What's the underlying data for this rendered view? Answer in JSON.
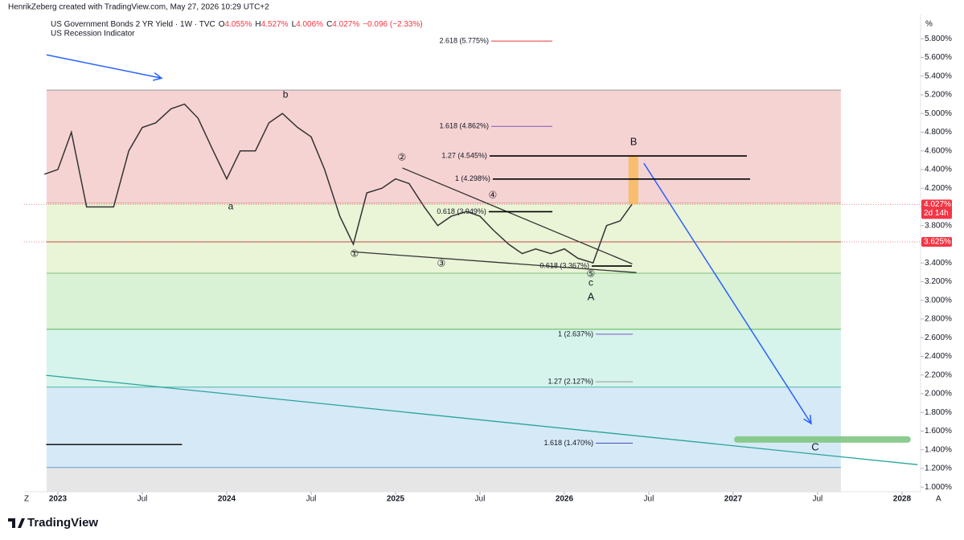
{
  "header": {
    "credit": "HenrikZeberg created with TradingView.com, May 27, 2026 10:29 UTC+2",
    "logo": "TradingView",
    "corner_left": "Z",
    "corner_right": "A"
  },
  "chart_data": {
    "type": "line",
    "title": "US Government Bonds 2 YR Yield · 1W · TVC",
    "ohlc": [
      {
        "key": "O",
        "value": "4.055%"
      },
      {
        "key": "H",
        "value": "4.527%"
      },
      {
        "key": "L",
        "value": "4.006%"
      },
      {
        "key": "C",
        "value": "4.027%"
      }
    ],
    "change": "−0.096 (−2.33%)",
    "indicator": "US Recession Indicator",
    "y_unit": "%",
    "xlim": [
      2022.8,
      2028.11
    ],
    "xticks": [
      {
        "value": 2023,
        "label": "2023"
      },
      {
        "value": 2023.5,
        "label": "Jul"
      },
      {
        "value": 2024,
        "label": "2024"
      },
      {
        "value": 2024.5,
        "label": "Jul"
      },
      {
        "value": 2025,
        "label": "2025"
      },
      {
        "value": 2025.5,
        "label": "Jul"
      },
      {
        "value": 2026,
        "label": "2026"
      },
      {
        "value": 2026.5,
        "label": "Jul"
      },
      {
        "value": 2027,
        "label": "2027"
      },
      {
        "value": 2027.5,
        "label": "Jul"
      },
      {
        "value": 2028,
        "label": "2028"
      }
    ],
    "ylim": [
      0.95,
      6.06
    ],
    "yticks": [
      {
        "value": 1.0,
        "label": "1.000%"
      },
      {
        "value": 1.2,
        "label": "1.200%"
      },
      {
        "value": 1.4,
        "label": "1.400%"
      },
      {
        "value": 1.6,
        "label": "1.600%"
      },
      {
        "value": 1.8,
        "label": "1.800%"
      },
      {
        "value": 2.0,
        "label": "2.000%"
      },
      {
        "value": 2.2,
        "label": "2.200%"
      },
      {
        "value": 2.4,
        "label": "2.400%"
      },
      {
        "value": 2.6,
        "label": "2.600%"
      },
      {
        "value": 2.8,
        "label": "2.800%"
      },
      {
        "value": 3.0,
        "label": "3.000%"
      },
      {
        "value": 3.2,
        "label": "3.200%"
      },
      {
        "value": 3.4,
        "label": "3.400%"
      },
      {
        "value": 3.6,
        "label": "3.600%"
      },
      {
        "value": 3.8,
        "label": "3.800%"
      },
      {
        "value": 4.0,
        "label": "4.000%"
      },
      {
        "value": 4.2,
        "label": "4.200%"
      },
      {
        "value": 4.4,
        "label": "4.400%"
      },
      {
        "value": 4.6,
        "label": "4.600%"
      },
      {
        "value": 4.8,
        "label": "4.800%"
      },
      {
        "value": 5.0,
        "label": "5.000%"
      },
      {
        "value": 5.2,
        "label": "5.200%"
      },
      {
        "value": 5.4,
        "label": "5.400%"
      },
      {
        "value": 5.6,
        "label": "5.600%"
      },
      {
        "value": 5.8,
        "label": "5.800%"
      }
    ],
    "series": [
      {
        "name": "US Government Bonds 2 YR Yield",
        "color": "#333333",
        "x": [
          2022.92,
          2023.0,
          2023.08,
          2023.17,
          2023.25,
          2023.33,
          2023.42,
          2023.5,
          2023.58,
          2023.67,
          2023.75,
          2023.83,
          2023.92,
          2024.0,
          2024.08,
          2024.17,
          2024.25,
          2024.33,
          2024.42,
          2024.5,
          2024.58,
          2024.67,
          2024.75,
          2024.83,
          2024.92,
          2025.0,
          2025.08,
          2025.17,
          2025.25,
          2025.33,
          2025.42,
          2025.5,
          2025.58,
          2025.67,
          2025.75,
          2025.83,
          2025.92,
          2026.0,
          2026.08,
          2026.17,
          2026.25,
          2026.33,
          2026.4
        ],
        "values": [
          4.35,
          4.4,
          4.8,
          4.0,
          4.0,
          4.0,
          4.6,
          4.85,
          4.9,
          5.05,
          5.1,
          4.95,
          4.6,
          4.3,
          4.6,
          4.6,
          4.9,
          5.0,
          4.85,
          4.75,
          4.4,
          3.9,
          3.6,
          4.15,
          4.2,
          4.3,
          4.25,
          4.0,
          3.8,
          3.9,
          3.95,
          3.9,
          3.75,
          3.6,
          3.5,
          3.55,
          3.5,
          3.55,
          3.45,
          3.4,
          3.8,
          3.85,
          4.027
        ]
      }
    ],
    "zones": {
      "x": [
        2022.933,
        2027.638
      ],
      "bands": [
        {
          "from": 5.25,
          "to": 4.04,
          "color": "#f6d3d3"
        },
        {
          "from": 4.04,
          "to": 3.29,
          "color": "#eaf4d6"
        },
        {
          "from": 3.29,
          "to": 2.69,
          "color": "#d9f1d5"
        },
        {
          "from": 2.69,
          "to": 2.07,
          "color": "#d6f3ec"
        },
        {
          "from": 2.07,
          "to": 1.21,
          "color": "#d6e9f6"
        },
        {
          "from": 1.21,
          "to": 0.95,
          "color": "#e6e6e6"
        }
      ],
      "levels": [
        {
          "value": 5.25,
          "color": "#999999"
        },
        {
          "value": 4.04,
          "color": "#d9a0a0"
        },
        {
          "value": 3.625,
          "color": "#b05050"
        },
        {
          "value": 3.29,
          "color": "#7cc47c"
        },
        {
          "value": 2.69,
          "color": "#5cb85c"
        },
        {
          "value": 2.07,
          "color": "#4db6ac"
        },
        {
          "value": 1.21,
          "color": "#64a0d0"
        }
      ]
    },
    "fib_levels": [
      {
        "label": "2.618 (5.775%)",
        "value": 5.775,
        "x": [
          2025.567,
          2025.929
        ],
        "color": "#e53935",
        "label_color": "#e53935"
      },
      {
        "label": "1.618 (4.862%)",
        "value": 4.862,
        "x": [
          2025.567,
          2025.929
        ],
        "color": "#7e57c2",
        "label_color": "#5e35b1"
      },
      {
        "label": "1.27 (4.545%)",
        "value": 4.545,
        "x": [
          2025.557,
          2027.081
        ],
        "color": "#000000",
        "label_color": "#888888"
      },
      {
        "label": "1 (4.298%)",
        "value": 4.298,
        "x": [
          2025.576,
          2027.1
        ],
        "color": "#000000",
        "label_color": "#7e3fc8"
      },
      {
        "label": "0.618 (3.949%)",
        "value": 3.949,
        "x": [
          2025.552,
          2025.929
        ],
        "color": "#000000",
        "label_color": "#222222"
      },
      {
        "label": "0.618 (3.367%)",
        "value": 3.367,
        "x": [
          2026.162,
          2026.4
        ],
        "color": "#000000",
        "label_color": "#222222"
      },
      {
        "label": "1 (2.637%)",
        "value": 2.637,
        "x": [
          2026.186,
          2026.405
        ],
        "color": "#7e57c2",
        "label_color": "#7e57c2"
      },
      {
        "label": "1.27 (2.127%)",
        "value": 2.127,
        "x": [
          2026.186,
          2026.405
        ],
        "color": "#999999",
        "label_color": "#888888"
      },
      {
        "label": "1.618 (1.470%)",
        "value": 1.47,
        "x": [
          2026.186,
          2026.405
        ],
        "color": "#3f51b5",
        "label_color": "#3f51b5"
      }
    ],
    "lines": [
      {
        "x": [
          2025.043,
          2026.4
        ],
        "y": [
          4.415,
          3.391
        ],
        "color": "#333333"
      },
      {
        "x": [
          2024.743,
          2026.424
        ],
        "y": [
          3.52,
          3.297
        ],
        "color": "#333333"
      },
      {
        "x": [
          2022.933,
          2028.09
        ],
        "y": [
          2.196,
          1.241
        ],
        "color": "#26a69a"
      },
      {
        "x": [
          2022.933,
          2023.733
        ],
        "y": [
          1.456,
          1.456
        ],
        "color": "#000000"
      },
      {
        "x": [
          2027.024,
          2028.033
        ],
        "y": [
          1.51,
          1.51
        ],
        "color": "#81c784",
        "thick": true
      }
    ],
    "arrows": [
      {
        "x": [
          2022.933,
          2023.614
        ],
        "y": [
          5.628,
          5.378
        ],
        "color": "#2962ff"
      },
      {
        "x": [
          2026.471,
          2027.462
        ],
        "y": [
          4.467,
          1.68
        ],
        "color": "#2962ff"
      }
    ],
    "highlight": {
      "x": [
        2026.38,
        2026.438
      ],
      "y": [
        4.55,
        4.03
      ],
      "color": "#f7b955"
    },
    "wave_labels": [
      {
        "text": "a",
        "x": 2024.024,
        "y": 4.002
      },
      {
        "text": "b",
        "x": 2024.348,
        "y": 5.198
      },
      {
        "text": "①",
        "x": 2024.757,
        "y": 3.495
      },
      {
        "text": "②",
        "x": 2025.038,
        "y": 4.527
      },
      {
        "text": "③",
        "x": 2025.271,
        "y": 3.391
      },
      {
        "text": "④",
        "x": 2025.576,
        "y": 4.123
      },
      {
        "text": "⑤",
        "x": 2026.157,
        "y": 3.28
      },
      {
        "text": "c",
        "x": 2026.157,
        "y": 3.185
      },
      {
        "text": "A",
        "x": 2026.157,
        "y": 3.03
      },
      {
        "text": "B",
        "x": 2026.41,
        "y": 4.69
      },
      {
        "text": "C",
        "x": 2027.486,
        "y": 1.421
      }
    ],
    "price_badges": [
      {
        "value": 4.027,
        "label": "4.027%",
        "sub": "2d 14h",
        "color": "#f23645"
      },
      {
        "value": 3.625,
        "label": "3.625%",
        "color": "#f23645"
      }
    ]
  }
}
